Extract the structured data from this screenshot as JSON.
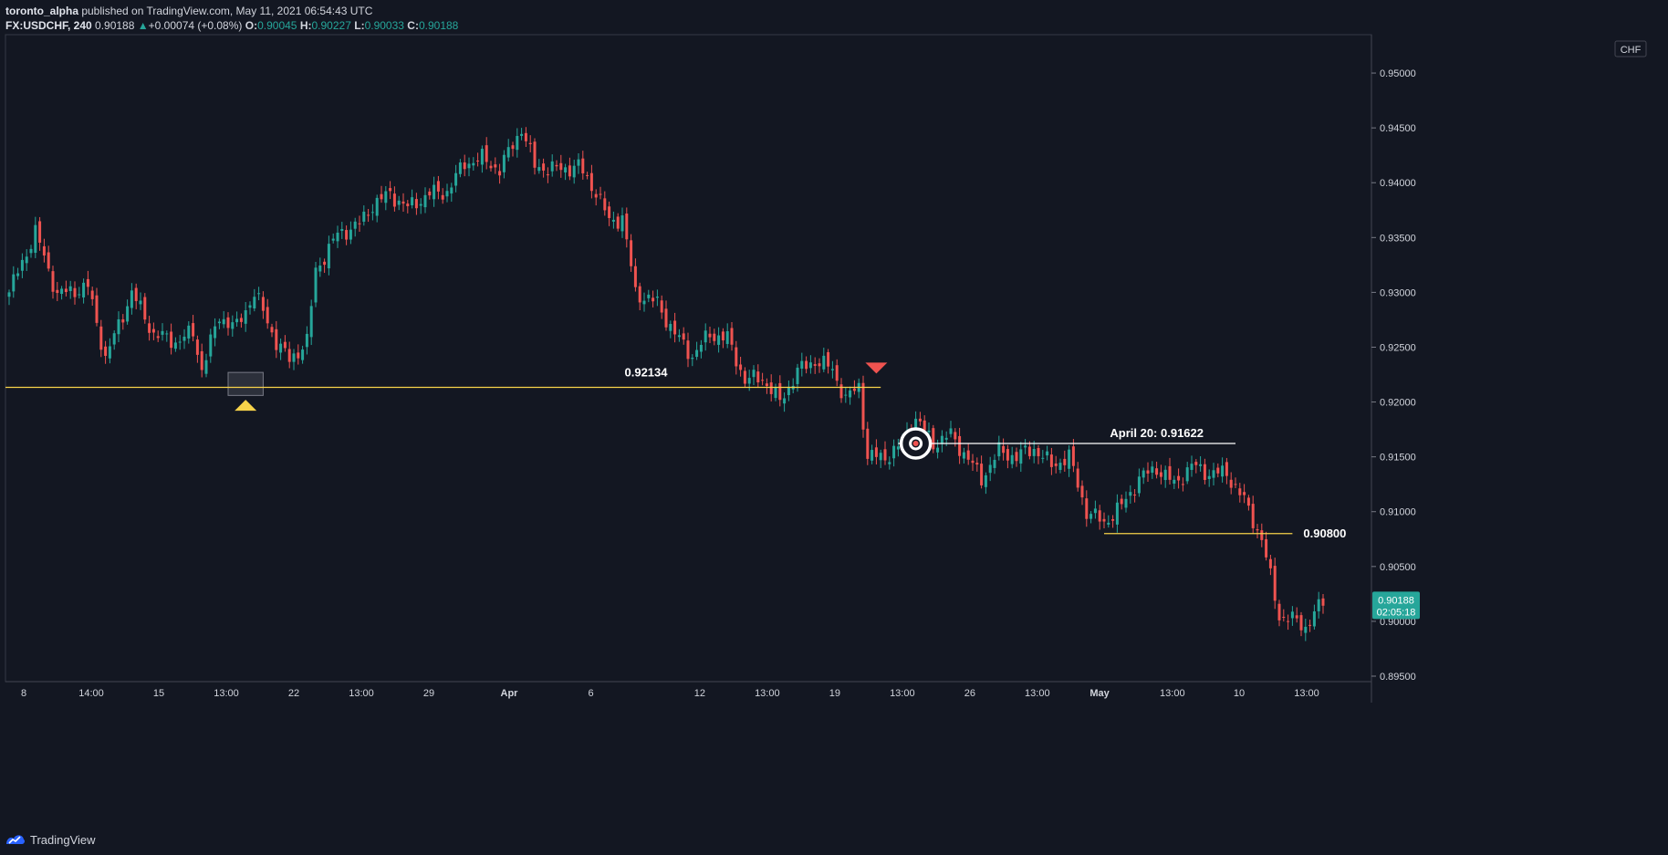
{
  "header": {
    "author": "toronto_alpha",
    "published_text": " published on TradingView.com, May 11, 2021 06:54:43 UTC",
    "symbol": "FX:USDCHF, 240",
    "last": "0.90188",
    "change": "+0.00074 (+0.08%)",
    "o_label": "O:",
    "o_value": "0.90045",
    "h_label": "H:",
    "h_value": "0.90227",
    "l_label": "L:",
    "l_value": "0.90033",
    "c_label": "C:",
    "c_value": "0.90188"
  },
  "footer": {
    "brand": "TradingView"
  },
  "colors": {
    "background": "#131722",
    "up": "#26a69a",
    "down": "#ef5350",
    "level_line": "#f7d34a",
    "text": "#d1d4dc",
    "grid_border": "#363a45"
  },
  "chart_data": {
    "type": "candlestick",
    "currency": "CHF",
    "ylim": [
      0.8945,
      0.9535
    ],
    "y_ticks": [
      "0.95000",
      "0.94500",
      "0.94000",
      "0.93500",
      "0.93000",
      "0.92500",
      "0.92000",
      "0.91500",
      "0.91000",
      "0.90500",
      "0.90000",
      "0.89500"
    ],
    "x_ticks": [
      "8",
      "14:00",
      "15",
      "13:00",
      "22",
      "13:00",
      "29",
      "Apr",
      "6",
      "12",
      "13:00",
      "19",
      "13:00",
      "26",
      "13:00",
      "May",
      "13:00",
      "10",
      "13:00"
    ],
    "x_ticks_bold": [
      "Apr",
      "May"
    ],
    "close_anchors": [
      [
        0,
        0.93
      ],
      [
        6,
        0.9355
      ],
      [
        11,
        0.9298
      ],
      [
        18,
        0.9305
      ],
      [
        22,
        0.924
      ],
      [
        28,
        0.93
      ],
      [
        33,
        0.9262
      ],
      [
        38,
        0.9255
      ],
      [
        42,
        0.9263
      ],
      [
        44,
        0.923
      ],
      [
        48,
        0.9278
      ],
      [
        52,
        0.9268
      ],
      [
        56,
        0.93
      ],
      [
        61,
        0.9255
      ],
      [
        64,
        0.9238
      ],
      [
        68,
        0.9255
      ],
      [
        70,
        0.932
      ],
      [
        75,
        0.9353
      ],
      [
        80,
        0.9362
      ],
      [
        83,
        0.938
      ],
      [
        87,
        0.939
      ],
      [
        91,
        0.9377
      ],
      [
        96,
        0.939
      ],
      [
        100,
        0.9392
      ],
      [
        104,
        0.9418
      ],
      [
        108,
        0.9422
      ],
      [
        112,
        0.9412
      ],
      [
        117,
        0.945
      ],
      [
        120,
        0.9415
      ],
      [
        125,
        0.9412
      ],
      [
        130,
        0.9415
      ],
      [
        134,
        0.9392
      ],
      [
        137,
        0.9365
      ],
      [
        140,
        0.9368
      ],
      [
        143,
        0.93
      ],
      [
        148,
        0.929
      ],
      [
        152,
        0.9262
      ],
      [
        156,
        0.9242
      ],
      [
        160,
        0.9262
      ],
      [
        164,
        0.9258
      ],
      [
        168,
        0.922
      ],
      [
        172,
        0.9222
      ],
      [
        176,
        0.92
      ],
      [
        180,
        0.9228
      ],
      [
        184,
        0.9238
      ],
      [
        188,
        0.923
      ],
      [
        191,
        0.9202
      ],
      [
        194,
        0.9215
      ],
      [
        196,
        0.915
      ],
      [
        200,
        0.915
      ],
      [
        203,
        0.9158
      ],
      [
        207,
        0.9185
      ],
      [
        211,
        0.9162
      ],
      [
        215,
        0.917
      ],
      [
        219,
        0.9148
      ],
      [
        222,
        0.913
      ],
      [
        226,
        0.9155
      ],
      [
        230,
        0.915
      ],
      [
        234,
        0.9158
      ],
      [
        238,
        0.9142
      ],
      [
        242,
        0.915
      ],
      [
        246,
        0.91
      ],
      [
        250,
        0.909
      ],
      [
        254,
        0.9105
      ],
      [
        258,
        0.913
      ],
      [
        262,
        0.914
      ],
      [
        266,
        0.9125
      ],
      [
        270,
        0.9142
      ],
      [
        274,
        0.9135
      ],
      [
        278,
        0.9135
      ],
      [
        282,
        0.911
      ],
      [
        286,
        0.9075
      ],
      [
        290,
        0.9005
      ],
      [
        294,
        0.9
      ],
      [
        296,
        0.8995
      ],
      [
        300,
        0.9018
      ]
    ],
    "candle_count": 301,
    "levels": [
      {
        "price": 0.92134,
        "label": "0.92134",
        "color": "#f7d34a",
        "from_index": -2,
        "to_index": 199
      },
      {
        "price": 0.91622,
        "label": "April 20: 0.91622",
        "color": "#ffffff",
        "from_index": 203,
        "to_index": 280
      },
      {
        "price": 0.908,
        "label": "0.90800",
        "color": "#f7d34a",
        "from_index": 250,
        "to_index": 293
      }
    ],
    "markers": [
      {
        "type": "up-triangle",
        "index": 54,
        "price": 0.9197,
        "color": "#f7d34a"
      },
      {
        "type": "down-triangle",
        "index": 198,
        "price": 0.9231,
        "color": "#ef5350"
      },
      {
        "type": "target-circle",
        "index": 207,
        "price": 0.91622,
        "color": "#ffffff"
      }
    ],
    "highlight_box": {
      "from_index": 50,
      "to_index": 58,
      "price_high": 0.9227,
      "price_low": 0.9206
    },
    "last_price": "0.90188",
    "countdown": "02:05:18"
  }
}
